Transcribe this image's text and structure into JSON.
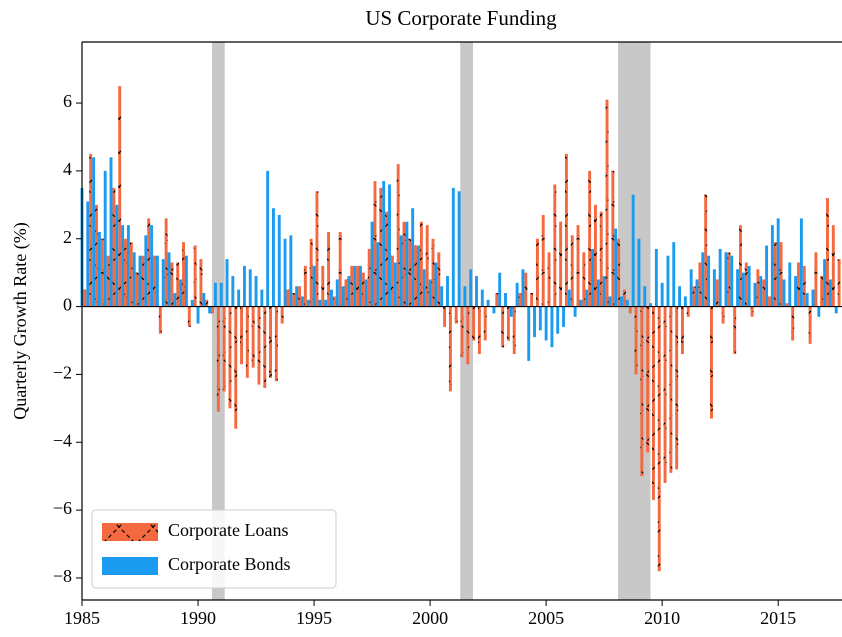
{
  "chart_data": {
    "type": "bar",
    "title": "US Corporate Funding",
    "ylabel": "Quarterly Growth Rate (%)",
    "x": [
      1985,
      1985.25,
      1985.5,
      1985.75,
      1986,
      1986.25,
      1986.5,
      1986.75,
      1987,
      1987.25,
      1987.5,
      1987.75,
      1988,
      1988.25,
      1988.5,
      1988.75,
      1989,
      1989.25,
      1989.5,
      1989.75,
      1990,
      1990.25,
      1990.5,
      1990.75,
      1991,
      1991.25,
      1991.5,
      1991.75,
      1992,
      1992.25,
      1992.5,
      1992.75,
      1993,
      1993.25,
      1993.5,
      1993.75,
      1994,
      1994.25,
      1994.5,
      1994.75,
      1995,
      1995.25,
      1995.5,
      1995.75,
      1996,
      1996.25,
      1996.5,
      1996.75,
      1997,
      1997.25,
      1997.5,
      1997.75,
      1998,
      1998.25,
      1998.5,
      1998.75,
      1999,
      1999.25,
      1999.5,
      1999.75,
      2000,
      2000.25,
      2000.5,
      2000.75,
      2001,
      2001.25,
      2001.5,
      2001.75,
      2002,
      2002.25,
      2002.5,
      2002.75,
      2003,
      2003.25,
      2003.5,
      2003.75,
      2004,
      2004.25,
      2004.5,
      2004.75,
      2005,
      2005.25,
      2005.5,
      2005.75,
      2006,
      2006.25,
      2006.5,
      2006.75,
      2007,
      2007.25,
      2007.5,
      2007.75,
      2008,
      2008.25,
      2008.5,
      2008.75,
      2009,
      2009.25,
      2009.5,
      2009.75,
      2010,
      2010.25,
      2010.5,
      2010.75,
      2011,
      2011.25,
      2011.5,
      2011.75,
      2012,
      2012.25,
      2012.5,
      2012.75,
      2013,
      2013.25,
      2013.5,
      2013.75,
      2014,
      2014.25,
      2014.5,
      2014.75,
      2015,
      2015.25,
      2015.5,
      2015.75,
      2016,
      2016.25,
      2016.5,
      2016.75,
      2017,
      2017.25,
      2017.5
    ],
    "series": [
      {
        "name": "Corporate Loans",
        "color": "#f4693f",
        "hatch": "x",
        "values": [
          0.5,
          4.5,
          3.0,
          2.0,
          1.5,
          3.5,
          6.5,
          2.0,
          1.9,
          1.0,
          1.5,
          2.6,
          1.5,
          -0.8,
          2.6,
          1.3,
          1.3,
          1.9,
          -0.6,
          1.8,
          1.4,
          0.2,
          -0.2,
          -3.1,
          -2.5,
          -3.0,
          -3.6,
          -1.7,
          -2.1,
          -1.8,
          -2.3,
          -2.4,
          -2.1,
          -2.2,
          -0.5,
          0.5,
          0.4,
          0.6,
          1.2,
          2.0,
          3.4,
          1.2,
          2.2,
          0.3,
          2.2,
          0.8,
          1.2,
          1.2,
          1.0,
          1.7,
          3.7,
          3.5,
          2.8,
          1.5,
          4.2,
          2.5,
          2.0,
          1.8,
          2.5,
          2.4,
          2.0,
          1.6,
          -0.6,
          -2.5,
          -0.5,
          -1.5,
          -1.7,
          -1.0,
          -1.4,
          -1.0,
          0.0,
          0.4,
          -1.2,
          -1.0,
          -1.4,
          0.4,
          1.0,
          0.4,
          2.0,
          2.7,
          1.6,
          3.6,
          2.5,
          4.5,
          2.1,
          2.4,
          1.6,
          4.0,
          3.0,
          2.8,
          6.1,
          4.0,
          2.0,
          0.5,
          -0.2,
          -2.0,
          -5.0,
          -4.3,
          -5.7,
          -7.8,
          -5.2,
          -4.9,
          -4.8,
          -1.4,
          -0.3,
          0.6,
          1.3,
          3.3,
          -3.3,
          0.8,
          -0.5,
          1.6,
          -1.4,
          2.4,
          1.3,
          -0.3,
          1.1,
          0.8,
          0.3,
          1.9,
          1.9,
          0.1,
          -1.0,
          1.3,
          1.2,
          -1.1,
          1.6,
          0.9,
          3.2,
          2.4,
          1.4
        ]
      },
      {
        "name": "Corporate Bonds",
        "color": "#1a9bf0",
        "values": [
          3.5,
          3.1,
          4.4,
          2.2,
          4.0,
          4.4,
          3.0,
          2.4,
          2.4,
          1.6,
          1.5,
          2.1,
          2.4,
          1.5,
          1.4,
          1.6,
          0.4,
          0.8,
          1.5,
          0.2,
          -0.5,
          0.4,
          -0.2,
          0.7,
          0.7,
          1.4,
          0.9,
          0.5,
          1.2,
          1.1,
          0.9,
          0.5,
          4.0,
          2.9,
          2.7,
          2.0,
          2.1,
          0.6,
          0.3,
          0.2,
          1.2,
          0.2,
          0.2,
          0.5,
          0.8,
          0.6,
          0.9,
          1.2,
          1.2,
          0.8,
          2.5,
          1.9,
          3.7,
          3.6,
          1.3,
          2.1,
          2.5,
          2.9,
          1.8,
          1.1,
          0.8,
          1.3,
          0.6,
          0.9,
          3.5,
          3.4,
          0.6,
          1.1,
          0.9,
          0.5,
          0.2,
          -0.2,
          1.0,
          0.4,
          -0.3,
          0.7,
          1.1,
          -1.6,
          -0.9,
          -0.7,
          -1.0,
          -1.2,
          -0.8,
          -0.6,
          0.5,
          -0.3,
          0.2,
          0.5,
          1.7,
          0.8,
          0.9,
          0.3,
          2.3,
          0.3,
          0.2,
          3.3,
          2.0,
          0.6,
          0.1,
          1.7,
          0.7,
          1.5,
          1.9,
          0.6,
          0.3,
          1.1,
          0.8,
          1.6,
          1.5,
          1.1,
          1.7,
          1.6,
          1.5,
          1.1,
          1.0,
          1.2,
          0.7,
          0.9,
          1.8,
          2.4,
          2.6,
          0.8,
          1.3,
          0.9,
          2.6,
          0.4,
          0.5,
          -0.3,
          1.4,
          0.8,
          -0.2
        ]
      }
    ],
    "shaded_spans": [
      [
        1990.6,
        1991.15
      ],
      [
        2001.3,
        2001.85
      ],
      [
        2008.1,
        2009.5
      ]
    ],
    "shade_color": "#c8c8c8",
    "xlim": [
      1985,
      2017.75
    ],
    "ylim": [
      -8.65,
      7.8
    ],
    "xticks": [
      1985,
      1990,
      1995,
      2000,
      2005,
      2010,
      2015
    ],
    "yticks": [
      {
        "value": -8,
        "label": "−8"
      },
      {
        "value": -6,
        "label": "−6"
      },
      {
        "value": -4,
        "label": "−4"
      },
      {
        "value": -2,
        "label": "−2"
      },
      0,
      2,
      4,
      6
    ],
    "legend": "lower left",
    "zero_line": true
  }
}
